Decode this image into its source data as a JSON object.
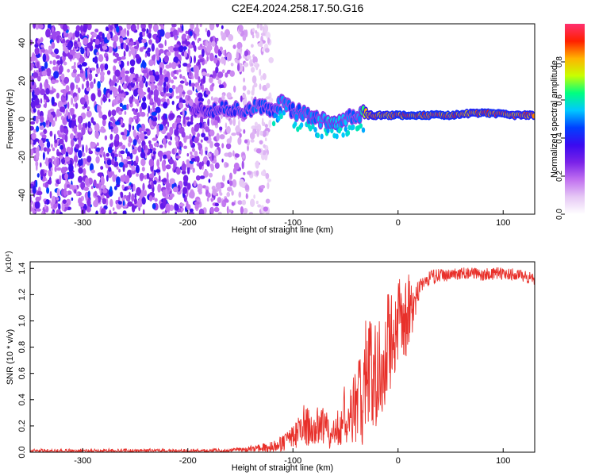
{
  "title": "C2E4.2024.258.17.50.G16",
  "colors": {
    "snr_line": "#e8302a",
    "colormap": [
      "#ffffff",
      "#e6c8f5",
      "#c070f0",
      "#7a22e8",
      "#3a0af0",
      "#0040ff",
      "#00c8ff",
      "#00ff80",
      "#c8ff00",
      "#ffb400",
      "#ff2000",
      "#ff3070"
    ]
  },
  "chart_data": [
    {
      "type": "heatmap",
      "name": "spectrogram",
      "xlabel": "Height of straight line (km)",
      "ylabel": "Frequency (Hz)",
      "xlim": [
        -350,
        130
      ],
      "ylim": [
        -50,
        50
      ],
      "xticks": [
        -300,
        -200,
        -100,
        0,
        100
      ],
      "xtick_labels": [
        "-300",
        "-200",
        "-100",
        "0",
        "100"
      ],
      "yticks": [
        -40,
        -20,
        0,
        20,
        40
      ],
      "ytick_labels": [
        "-40",
        "-20",
        "0",
        "20",
        "40"
      ],
      "colorbar": {
        "label": "Normalized spectral amplitude",
        "range": [
          0,
          1
        ],
        "ticks": [
          0.0,
          0.2,
          0.4,
          0.6,
          0.8
        ],
        "tick_labels": [
          "0.0",
          "0.2",
          "0.4",
          "0.6",
          "0.8"
        ]
      },
      "noise_region_x": [
        -350,
        -120
      ],
      "signal_track": {
        "x": [
          -195,
          -180,
          -165,
          -150,
          -135,
          -120,
          -110,
          -100,
          -90,
          -80,
          -70,
          -60,
          -50,
          -40,
          -35,
          -30,
          -20,
          -10,
          0,
          10,
          30,
          50,
          70,
          90,
          110,
          130
        ],
        "y": [
          6,
          5,
          6,
          5,
          6,
          5,
          8,
          4,
          3,
          1,
          -1,
          -2,
          0,
          2,
          3,
          2,
          2,
          2,
          2,
          2,
          2,
          2,
          3,
          3,
          2,
          2
        ],
        "amplitude": [
          0.35,
          0.4,
          0.45,
          0.45,
          0.5,
          0.45,
          0.55,
          0.5,
          0.55,
          0.55,
          0.55,
          0.6,
          0.55,
          0.5,
          0.6,
          0.85,
          0.9,
          0.9,
          0.95,
          0.95,
          0.95,
          0.95,
          0.9,
          0.95,
          0.9,
          0.9
        ]
      }
    },
    {
      "type": "line",
      "name": "snr",
      "xlabel": "Height of straight line (km)",
      "ylabel": "SNR (10 * v/v)",
      "y_multiplier": "(x10⁴)",
      "xlim": [
        -350,
        130
      ],
      "ylim": [
        0,
        1.45
      ],
      "xticks": [
        -300,
        -200,
        -100,
        0,
        100
      ],
      "xtick_labels": [
        "-300",
        "-200",
        "-100",
        "0",
        "100"
      ],
      "yticks": [
        0.0,
        0.2,
        0.4,
        0.6,
        0.8,
        1.0,
        1.2,
        1.4
      ],
      "ytick_labels": [
        "0.0",
        "0.2",
        "0.4",
        "0.6",
        "0.8",
        "1.0",
        "1.2",
        "1.4"
      ],
      "series": [
        {
          "x": [
            -350,
            -300,
            -250,
            -200,
            -170,
            -150,
            -130,
            -115,
            -100,
            -90,
            -80,
            -70,
            -65,
            -60,
            -55,
            -50,
            -45,
            -40,
            -35,
            -30,
            -25,
            -20,
            -15,
            -10,
            -5,
            0,
            5,
            10,
            15,
            20,
            25,
            30,
            40,
            50,
            60,
            70,
            80,
            90,
            100,
            110,
            120,
            130
          ],
          "mean": [
            0.01,
            0.01,
            0.01,
            0.01,
            0.01,
            0.02,
            0.03,
            0.05,
            0.12,
            0.2,
            0.18,
            0.22,
            0.12,
            0.15,
            0.22,
            0.3,
            0.28,
            0.35,
            0.45,
            0.55,
            0.6,
            0.65,
            0.55,
            0.8,
            0.95,
            1.0,
            0.95,
            1.05,
            1.15,
            1.25,
            1.3,
            1.33,
            1.35,
            1.35,
            1.36,
            1.36,
            1.35,
            1.36,
            1.36,
            1.35,
            1.34,
            1.32
          ],
          "spread": [
            0.01,
            0.01,
            0.01,
            0.01,
            0.01,
            0.01,
            0.02,
            0.03,
            0.06,
            0.1,
            0.09,
            0.1,
            0.06,
            0.08,
            0.12,
            0.14,
            0.14,
            0.2,
            0.25,
            0.3,
            0.33,
            0.3,
            0.25,
            0.28,
            0.22,
            0.25,
            0.2,
            0.2,
            0.12,
            0.05,
            0.04,
            0.04,
            0.03,
            0.03,
            0.03,
            0.03,
            0.03,
            0.03,
            0.03,
            0.03,
            0.03,
            0.03
          ]
        }
      ]
    }
  ]
}
